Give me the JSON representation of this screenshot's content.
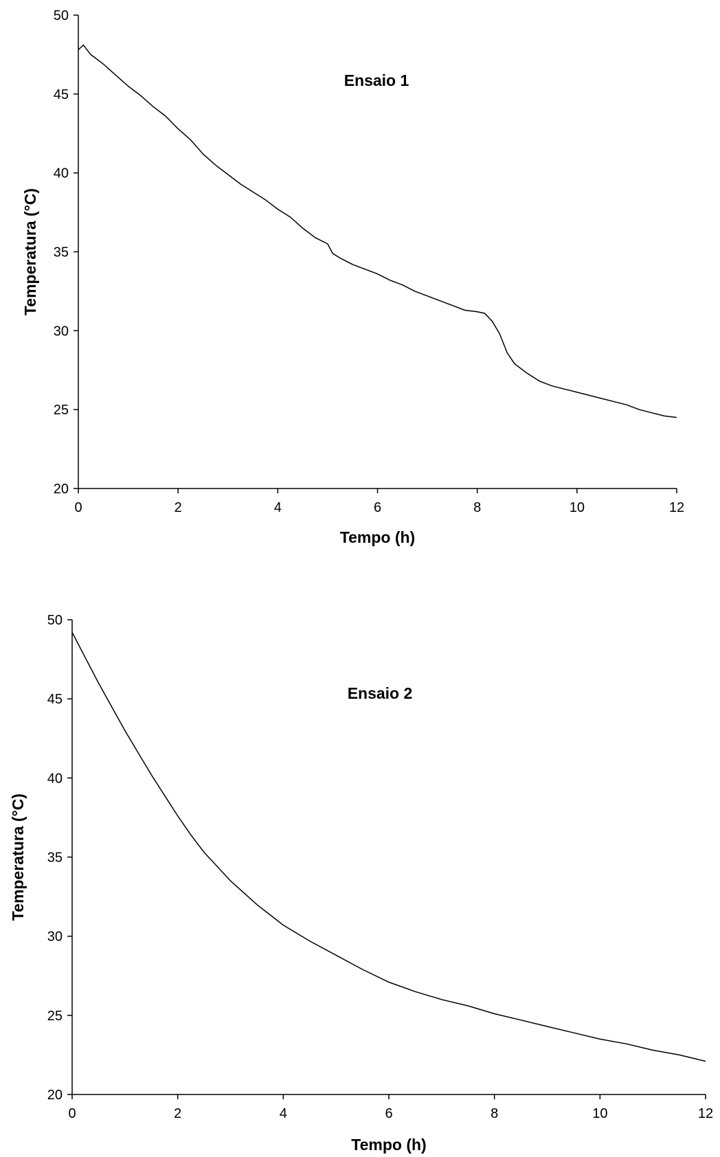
{
  "chart_data": [
    {
      "type": "line",
      "title": "",
      "annotation": "Ensaio 1",
      "xlabel": "Tempo (h)",
      "ylabel": "Temperatura (°C)",
      "xlim": [
        0,
        12
      ],
      "ylim": [
        20,
        50
      ],
      "xticks": [
        0,
        2,
        4,
        6,
        8,
        10,
        12
      ],
      "yticks": [
        20,
        25,
        30,
        35,
        40,
        45,
        50
      ],
      "grid": false,
      "legend": "none",
      "line_color": "#000000",
      "series": [
        {
          "x": [
            0,
            0.1,
            0.25,
            0.5,
            0.75,
            1.0,
            1.25,
            1.5,
            1.75,
            2.0,
            2.25,
            2.5,
            2.75,
            3.0,
            3.25,
            3.5,
            3.75,
            4.0,
            4.25,
            4.5,
            4.75,
            5.0,
            5.1,
            5.25,
            5.5,
            5.75,
            6.0,
            6.25,
            6.5,
            6.75,
            7.0,
            7.25,
            7.5,
            7.75,
            8.0,
            8.15,
            8.3,
            8.45,
            8.6,
            8.75,
            9.0,
            9.25,
            9.5,
            9.75,
            10.0,
            10.25,
            10.5,
            10.75,
            11.0,
            11.25,
            11.5,
            11.75,
            12.0
          ],
          "y": [
            47.8,
            48.1,
            47.5,
            46.9,
            46.2,
            45.5,
            44.9,
            44.2,
            43.6,
            42.8,
            42.1,
            41.2,
            40.5,
            39.9,
            39.3,
            38.8,
            38.3,
            37.7,
            37.2,
            36.5,
            35.9,
            35.5,
            34.9,
            34.6,
            34.2,
            33.9,
            33.6,
            33.2,
            32.9,
            32.5,
            32.2,
            31.9,
            31.6,
            31.3,
            31.2,
            31.1,
            30.6,
            29.8,
            28.6,
            27.9,
            27.3,
            26.8,
            26.5,
            26.3,
            26.1,
            25.9,
            25.7,
            25.5,
            25.3,
            25.0,
            24.8,
            24.6,
            24.5
          ]
        }
      ]
    },
    {
      "type": "line",
      "title": "",
      "annotation": "Ensaio 2",
      "xlabel": "Tempo (h)",
      "ylabel": "Temperatura (°C)",
      "xlim": [
        0,
        12
      ],
      "ylim": [
        20,
        50
      ],
      "xticks": [
        0,
        2,
        4,
        6,
        8,
        10,
        12
      ],
      "yticks": [
        20,
        25,
        30,
        35,
        40,
        45,
        50
      ],
      "grid": false,
      "legend": "none",
      "line_color": "#000000",
      "series": [
        {
          "x": [
            0,
            0.25,
            0.5,
            0.75,
            1.0,
            1.25,
            1.5,
            1.75,
            2.0,
            2.25,
            2.5,
            2.75,
            3.0,
            3.5,
            4.0,
            4.5,
            5.0,
            5.5,
            6.0,
            6.5,
            7.0,
            7.5,
            8.0,
            8.5,
            9.0,
            9.5,
            10.0,
            10.5,
            11.0,
            11.5,
            12.0
          ],
          "y": [
            49.2,
            47.6,
            46.0,
            44.5,
            43.0,
            41.6,
            40.2,
            38.9,
            37.6,
            36.4,
            35.3,
            34.4,
            33.5,
            32.0,
            30.7,
            29.7,
            28.8,
            27.9,
            27.1,
            26.5,
            26.0,
            25.6,
            25.1,
            24.7,
            24.3,
            23.9,
            23.5,
            23.2,
            22.8,
            22.5,
            22.1
          ]
        }
      ]
    }
  ]
}
